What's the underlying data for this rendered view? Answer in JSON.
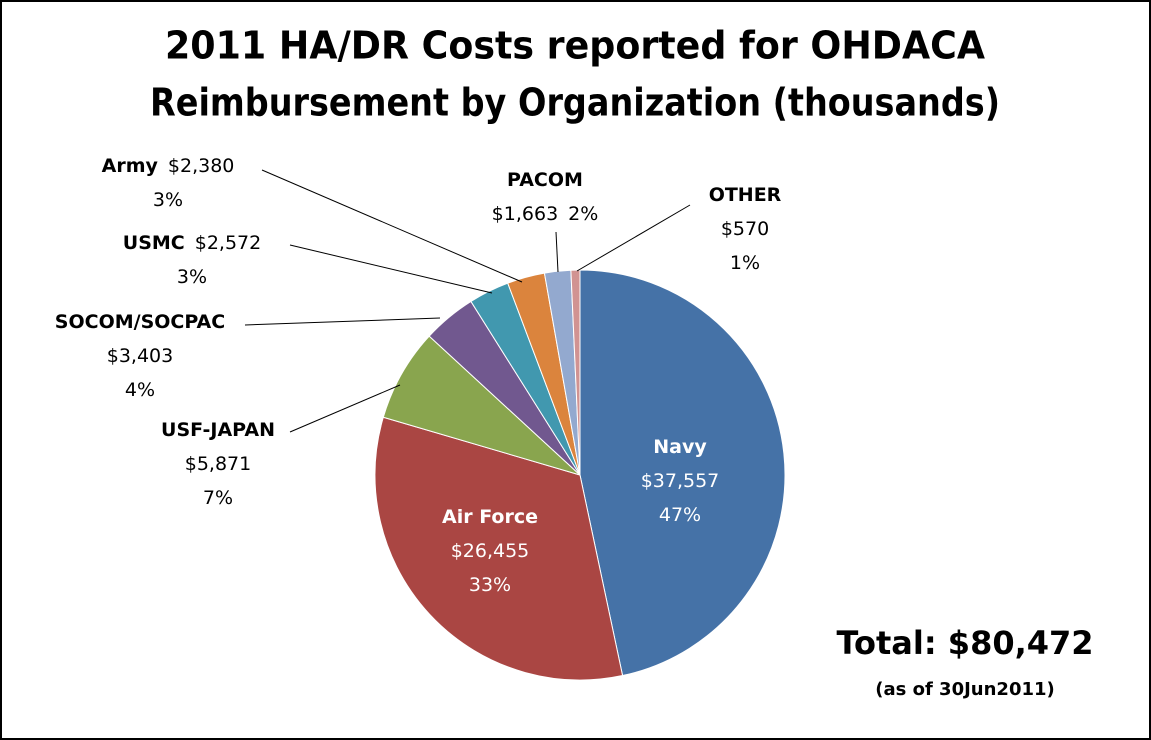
{
  "chart_data": {
    "type": "pie",
    "title": [
      "2011 HA/DR Costs reported for OHDACA",
      "Reimbursement by Organization (thousands)"
    ],
    "categories": [
      "Navy",
      "Air Force",
      "USF-JAPAN",
      "SOCOM/SOCPAC",
      "USMC",
      "Army",
      "PACOM",
      "OTHER"
    ],
    "values": [
      37557,
      26455,
      5871,
      3403,
      2572,
      2380,
      1663,
      570
    ],
    "value_labels": [
      "$37,557",
      "$26,455",
      "$5,871",
      "$3,403",
      "$2,572",
      "$2,380",
      "$1,663",
      "$570"
    ],
    "percent_labels": [
      "47%",
      "33%",
      "7%",
      "4%",
      "3%",
      "3%",
      "2%",
      "1%"
    ],
    "colors": [
      "#4572a7",
      "#aa4643",
      "#89a54e",
      "#71588f",
      "#4198af",
      "#db843d",
      "#93a9cf",
      "#d19392"
    ],
    "annotations": [
      "Total:  $80,472",
      "(as of 30Jun2011)"
    ]
  }
}
